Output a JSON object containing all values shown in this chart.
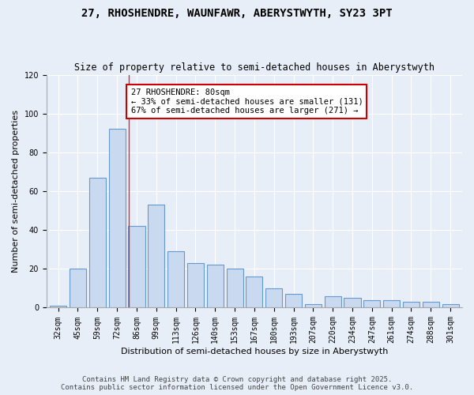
{
  "title": "27, RHOSHENDRE, WAUNFAWR, ABERYSTWYTH, SY23 3PT",
  "subtitle": "Size of property relative to semi-detached houses in Aberystwyth",
  "xlabel": "Distribution of semi-detached houses by size in Aberystwyth",
  "ylabel": "Number of semi-detached properties",
  "categories": [
    "32sqm",
    "45sqm",
    "59sqm",
    "72sqm",
    "86sqm",
    "99sqm",
    "113sqm",
    "126sqm",
    "140sqm",
    "153sqm",
    "167sqm",
    "180sqm",
    "193sqm",
    "207sqm",
    "220sqm",
    "234sqm",
    "247sqm",
    "261sqm",
    "274sqm",
    "288sqm",
    "301sqm"
  ],
  "bar_heights": [
    1,
    20,
    67,
    92,
    42,
    53,
    29,
    23,
    22,
    20,
    16,
    10,
    7,
    2,
    6,
    5,
    4,
    4,
    3,
    3,
    2
  ],
  "bar_color": "#c9d9f0",
  "bar_edge_color": "#6699cc",
  "property_label": "27 RHOSHENDRE: 80sqm",
  "pct_smaller": 33,
  "n_smaller": 131,
  "pct_larger": 67,
  "n_larger": 271,
  "annotation_box_color": "#ffffff",
  "annotation_box_edge_color": "#cc0000",
  "vline_color": "#cc3333",
  "vline_x": 3.6,
  "ylim": [
    0,
    120
  ],
  "yticks": [
    0,
    20,
    40,
    60,
    80,
    100,
    120
  ],
  "background_color": "#e8eef8",
  "footer_line1": "Contains HM Land Registry data © Crown copyright and database right 2025.",
  "footer_line2": "Contains public sector information licensed under the Open Government Licence v3.0.",
  "title_fontsize": 10,
  "subtitle_fontsize": 8.5,
  "axis_label_fontsize": 8,
  "tick_fontsize": 7,
  "annotation_fontsize": 7.5,
  "footer_fontsize": 6.5
}
